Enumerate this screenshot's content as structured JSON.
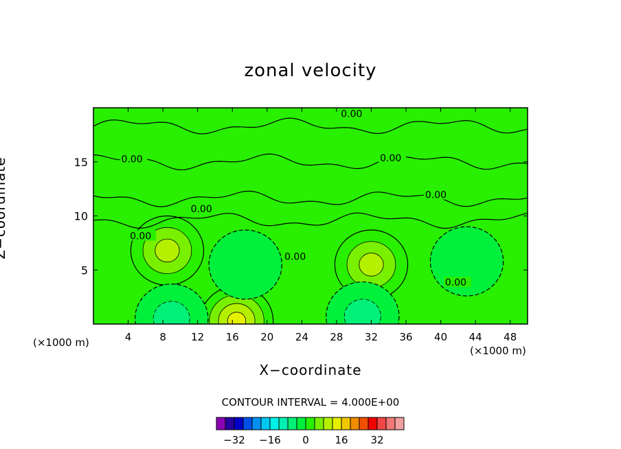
{
  "chart_data": {
    "type": "contour",
    "title": "zonal velocity",
    "xlabel": "X−coordinate",
    "ylabel": "Z−coordinate",
    "x_unit_left": "(×1000 m)",
    "x_unit_right": "(×1000 m)",
    "xlim": [
      0,
      50
    ],
    "ylim": [
      0,
      20
    ],
    "xticks": [
      4,
      8,
      12,
      16,
      20,
      24,
      28,
      32,
      36,
      40,
      44,
      48
    ],
    "yticks": [
      5,
      10,
      15
    ],
    "contour_interval_text": "CONTOUR INTERVAL = 4.000E+00",
    "contour_labels": [
      {
        "text": "0.00",
        "x": 28.5,
        "z": 19.4
      },
      {
        "text": "0.00",
        "x": 3.2,
        "z": 15.2
      },
      {
        "text": "0.00",
        "x": 33.0,
        "z": 15.3
      },
      {
        "text": "0.00",
        "x": 38.2,
        "z": 11.9
      },
      {
        "text": "0.00",
        "x": 11.2,
        "z": 10.6
      },
      {
        "text": "0.00",
        "x": 4.2,
        "z": 8.1
      },
      {
        "text": "0.00",
        "x": 22.0,
        "z": 6.2
      },
      {
        "text": "0.00",
        "x": 40.5,
        "z": 3.8
      }
    ],
    "colorbar": {
      "ticks": [
        "−32",
        "−16",
        "0",
        "16",
        "32"
      ],
      "tick_values": [
        -32,
        -16,
        0,
        16,
        32
      ],
      "colors": [
        "#8c00b4",
        "#2800a0",
        "#0000c8",
        "#0050e6",
        "#0090f0",
        "#00c8f0",
        "#00f0e6",
        "#00f0b4",
        "#00f078",
        "#00f03c",
        "#28f000",
        "#78f000",
        "#b4f000",
        "#e6f000",
        "#f0c800",
        "#f08c00",
        "#f05000",
        "#f00000",
        "#f04646",
        "#f07878",
        "#f0a0a0"
      ],
      "range": [
        -40,
        44
      ]
    },
    "features": [
      {
        "kind": "max",
        "x": 8.5,
        "z": 6.8,
        "value": 12
      },
      {
        "kind": "max",
        "x": 32,
        "z": 5.5,
        "value": 13
      },
      {
        "kind": "max",
        "x": 16.5,
        "z": 0.3,
        "value": 14
      },
      {
        "kind": "min",
        "x": 9,
        "z": 0.5,
        "value": -8
      },
      {
        "kind": "min",
        "x": 31,
        "z": 0.7,
        "value": -7
      },
      {
        "kind": "min",
        "x": 17.5,
        "z": 5.5,
        "value": -5
      },
      {
        "kind": "min",
        "x": 43,
        "z": 5.8,
        "value": -4
      }
    ]
  }
}
